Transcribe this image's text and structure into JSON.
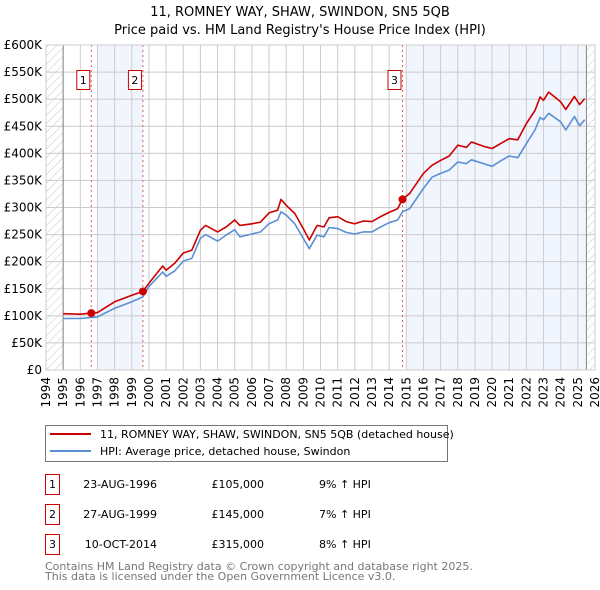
{
  "chart_data": {
    "type": "line",
    "title": "11, ROMNEY WAY, SHAW, SWINDON, SN5 5QB",
    "subtitle": "Price paid vs. HM Land Registry's House Price Index (HPI)",
    "xlabel": "",
    "ylabel": "",
    "xlim": [
      1994,
      2026
    ],
    "ylim": [
      0,
      600000
    ],
    "grid": true,
    "x_ticks": [
      "1994",
      "1995",
      "1996",
      "1997",
      "1998",
      "1999",
      "2000",
      "2001",
      "2002",
      "2003",
      "2004",
      "2005",
      "2006",
      "2007",
      "2008",
      "2009",
      "2010",
      "2011",
      "2012",
      "2013",
      "2014",
      "2015",
      "2016",
      "2017",
      "2018",
      "2019",
      "2020",
      "2021",
      "2022",
      "2023",
      "2024",
      "2025",
      "2026"
    ],
    "y_ticks": [
      {
        "value": 0,
        "label": "£0"
      },
      {
        "value": 50000,
        "label": "£50K"
      },
      {
        "value": 100000,
        "label": "£100K"
      },
      {
        "value": 150000,
        "label": "£150K"
      },
      {
        "value": 200000,
        "label": "£200K"
      },
      {
        "value": 250000,
        "label": "£250K"
      },
      {
        "value": 300000,
        "label": "£300K"
      },
      {
        "value": 350000,
        "label": "£350K"
      },
      {
        "value": 400000,
        "label": "£400K"
      },
      {
        "value": 450000,
        "label": "£450K"
      },
      {
        "value": 500000,
        "label": "£500K"
      },
      {
        "value": 550000,
        "label": "£550K"
      },
      {
        "value": 600000,
        "label": "£600K"
      }
    ],
    "shaded_ranges": [
      [
        1997.0,
        1999.65
      ],
      [
        2015.0,
        2025.5
      ]
    ],
    "hatched_ranges": [
      [
        1994,
        1995
      ],
      [
        2025.5,
        2026
      ]
    ],
    "series": [
      {
        "name": "11, ROMNEY WAY, SHAW, SWINDON, SN5 5QB (detached house)",
        "color": "#cc0000",
        "x": [
          1995,
          1996,
          1996.64,
          1997,
          1998,
          1999,
          1999.65,
          2000,
          2000.8,
          2001,
          2001.5,
          2002,
          2002.5,
          2003,
          2003.3,
          2004,
          2004.5,
          2005,
          2005.3,
          2006,
          2006.5,
          2007,
          2007.5,
          2007.7,
          2008,
          2008.5,
          2009,
          2009.35,
          2009.8,
          2010.2,
          2010.5,
          2011,
          2011.5,
          2012,
          2012.5,
          2013,
          2013.5,
          2014,
          2014.5,
          2014.78,
          2015.2,
          2016,
          2016.5,
          2017,
          2017.5,
          2018,
          2018.5,
          2018.8,
          2019.5,
          2020,
          2020.5,
          2021,
          2021.5,
          2022,
          2022.5,
          2022.8,
          2023,
          2023.3,
          2024,
          2024.3,
          2024.8,
          2025.1,
          2025.4
        ],
        "y": [
          104000,
          103000,
          105000,
          106000,
          126000,
          138000,
          145000,
          160000,
          192000,
          184000,
          197000,
          216000,
          221000,
          258000,
          267000,
          255000,
          264000,
          277000,
          267000,
          270000,
          273000,
          290000,
          295000,
          315000,
          304000,
          289000,
          261000,
          240000,
          267000,
          264000,
          281000,
          283000,
          274000,
          270000,
          275000,
          274000,
          283000,
          291000,
          298000,
          315000,
          326000,
          363000,
          378000,
          387000,
          395000,
          415000,
          411000,
          421000,
          413000,
          409000,
          418000,
          427000,
          425000,
          455000,
          479000,
          504000,
          498000,
          513000,
          495000,
          481000,
          505000,
          490000,
          501000
        ]
      },
      {
        "name": "HPI: Average price, detached house, Swindon",
        "color": "#5b8fd4",
        "x": [
          1995,
          1996,
          1997,
          1998,
          1999,
          1999.65,
          2000,
          2000.8,
          2001,
          2001.5,
          2002,
          2002.5,
          2003,
          2003.3,
          2004,
          2004.5,
          2005,
          2005.3,
          2006,
          2006.5,
          2007,
          2007.5,
          2007.7,
          2008,
          2008.5,
          2009,
          2009.35,
          2009.8,
          2010.2,
          2010.5,
          2011,
          2011.5,
          2012,
          2012.5,
          2013,
          2013.5,
          2014,
          2014.5,
          2014.78,
          2015.2,
          2016,
          2016.5,
          2017,
          2017.5,
          2018,
          2018.5,
          2018.8,
          2019.5,
          2020,
          2020.5,
          2021,
          2021.5,
          2022,
          2022.5,
          2022.8,
          2023,
          2023.3,
          2024,
          2024.3,
          2024.8,
          2025.1,
          2025.4
        ],
        "y": [
          95000,
          95000,
          98000,
          114000,
          126000,
          135000,
          154000,
          181000,
          173000,
          183000,
          201000,
          206000,
          243000,
          250000,
          238000,
          249000,
          259000,
          246000,
          251000,
          255000,
          270000,
          277000,
          292000,
          286000,
          270000,
          243000,
          224000,
          249000,
          246000,
          263000,
          261000,
          254000,
          251000,
          255000,
          255000,
          264000,
          272000,
          277000,
          292000,
          298000,
          335000,
          356000,
          363000,
          369000,
          384000,
          381000,
          388000,
          381000,
          376000,
          386000,
          395000,
          392000,
          418000,
          443000,
          466000,
          462000,
          474000,
          458000,
          443000,
          468000,
          451000,
          462000
        ]
      }
    ],
    "sales": [
      {
        "id": "1",
        "x": 1996.64,
        "y": 105000
      },
      {
        "id": "2",
        "x": 1999.65,
        "y": 145000
      },
      {
        "id": "3",
        "x": 2014.78,
        "y": 315000
      }
    ],
    "legend_position": "below"
  },
  "table": [
    {
      "id": "1",
      "date": "23-AUG-1996",
      "price": "£105,000",
      "hpi": "9% ↑ HPI"
    },
    {
      "id": "2",
      "date": "27-AUG-1999",
      "price": "£145,000",
      "hpi": "7% ↑ HPI"
    },
    {
      "id": "3",
      "date": "10-OCT-2014",
      "price": "£315,000",
      "hpi": "8% ↑ HPI"
    }
  ],
  "footer": {
    "line1": "Contains HM Land Registry data © Crown copyright and database right 2025.",
    "line2": "This data is licensed under the Open Government Licence v3.0."
  }
}
